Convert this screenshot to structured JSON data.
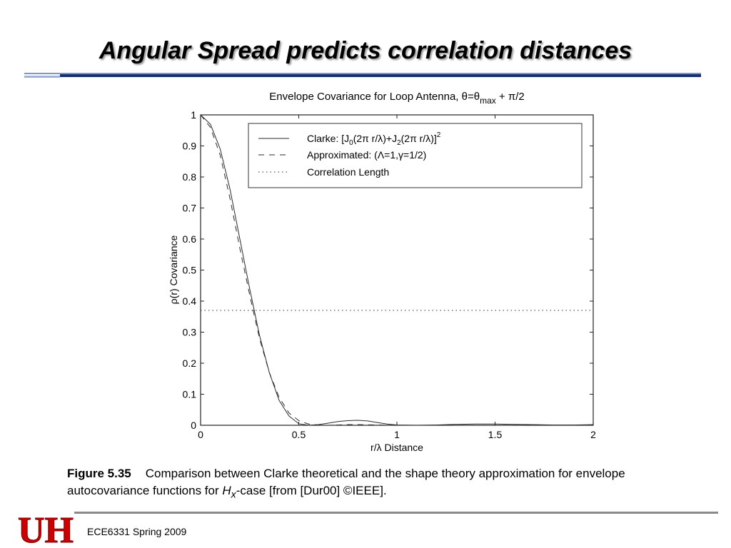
{
  "slide": {
    "title": "Angular Spread predicts correlation distances",
    "footer": "ECE6331 Spring 2009"
  },
  "caption": {
    "label": "Figure 5.35",
    "text_before_hx": "Comparison between Clarke theoretical and the shape theory approximation for envelope autocovariance functions for ",
    "hx": "H",
    "hx_sub": "x",
    "text_after_hx": "-case [from [Dur00] ©IEEE]."
  },
  "logo": {
    "text": "UH",
    "color": "#cc0000"
  },
  "chart_data": {
    "type": "line",
    "title": "Envelope Covariance for Loop Antenna, θ=θ",
    "title_sub": "max",
    "title_tail": " + π/2",
    "xlabel": "r/λ  Distance",
    "ylabel": "ρ(r)  Covariance",
    "xlim": [
      0,
      2
    ],
    "ylim": [
      0,
      1
    ],
    "xticks": [
      "0",
      "0.5",
      "1",
      "1.5",
      "2"
    ],
    "yticks": [
      "0",
      "0.1",
      "0.2",
      "0.3",
      "0.4",
      "0.5",
      "0.6",
      "0.7",
      "0.8",
      "0.9",
      "1"
    ],
    "grid": false,
    "legend_position": "top-right",
    "series": [
      {
        "name": "Clarke: [J0(2π r/λ)+J2(2π r/λ)]²",
        "style": "solid",
        "x": [
          0,
          0.05,
          0.1,
          0.15,
          0.2,
          0.25,
          0.3,
          0.35,
          0.4,
          0.45,
          0.5,
          0.55,
          0.6,
          0.65,
          0.7,
          0.75,
          0.8,
          0.85,
          0.9,
          0.95,
          1.0,
          1.1,
          1.2,
          1.3,
          1.4,
          1.5,
          1.6,
          1.7,
          1.8,
          1.9,
          2.0
        ],
        "y": [
          1.0,
          0.97,
          0.89,
          0.76,
          0.6,
          0.44,
          0.29,
          0.17,
          0.08,
          0.03,
          0.005,
          0.0,
          0.002,
          0.007,
          0.012,
          0.015,
          0.016,
          0.014,
          0.009,
          0.004,
          0.001,
          0.0,
          0.001,
          0.003,
          0.004,
          0.004,
          0.003,
          0.002,
          0.001,
          0.001,
          0.002
        ]
      },
      {
        "name": "Approximated: (Λ=1,γ=1/2)",
        "style": "dashed",
        "x": [
          0,
          0.05,
          0.1,
          0.15,
          0.2,
          0.25,
          0.3,
          0.35,
          0.4,
          0.45,
          0.5,
          0.55,
          0.6,
          0.65,
          0.7,
          0.75,
          0.8,
          0.9,
          1.0,
          1.2,
          1.4,
          1.6,
          1.8,
          2.0
        ],
        "y": [
          1.0,
          0.96,
          0.87,
          0.73,
          0.57,
          0.42,
          0.28,
          0.17,
          0.09,
          0.04,
          0.015,
          0.004,
          0.001,
          0.0,
          0.001,
          0.002,
          0.002,
          0.001,
          0.0,
          0.0,
          0.0,
          0.0,
          0.0,
          0.0
        ]
      },
      {
        "name": "Correlation Length",
        "style": "dotted",
        "x": [
          0,
          2
        ],
        "y": [
          0.37,
          0.37
        ]
      }
    ],
    "colors": {
      "lines": "#2b2b2b",
      "axes": "#222222"
    }
  }
}
